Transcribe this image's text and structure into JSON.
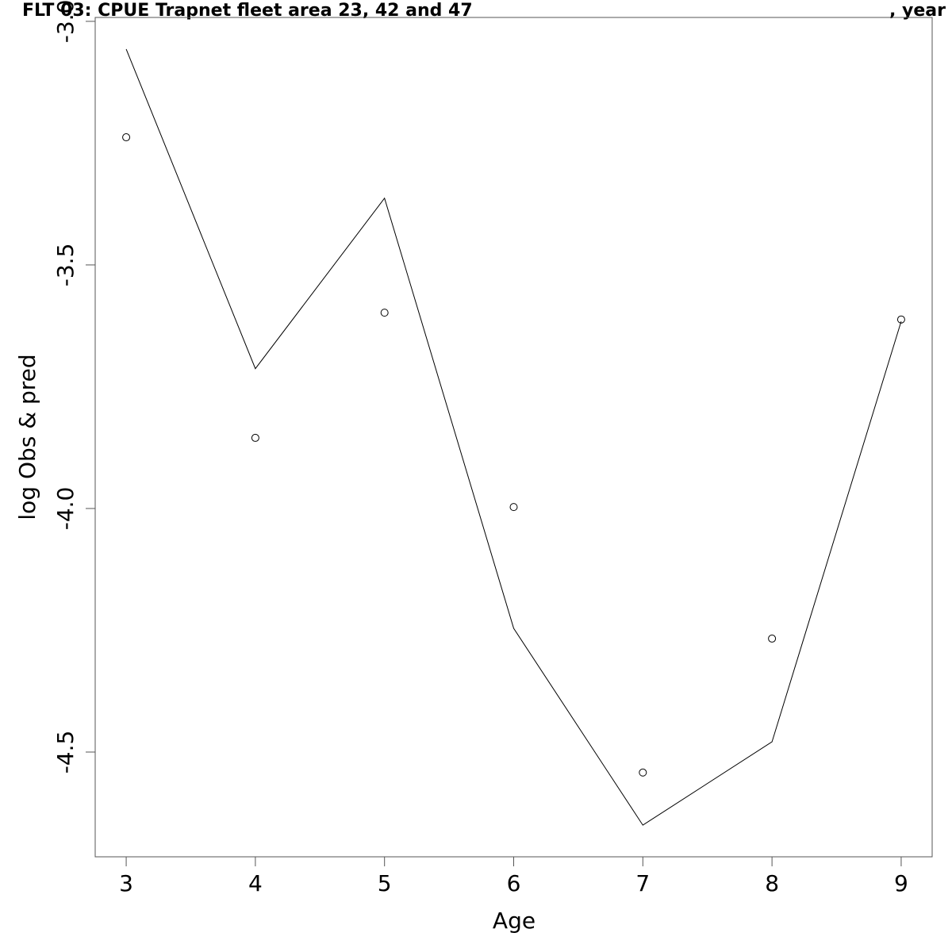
{
  "chart_data": {
    "type": "line",
    "title": "FLT 03: CPUE Trapnet fleet area 23, 42 and 47",
    "title_suffix": ", year",
    "x_label": "Age",
    "y_label": "log Obs & pred",
    "x": [
      3,
      4,
      5,
      6,
      7,
      8,
      9
    ],
    "series": [
      {
        "name": "obs",
        "kind": "points",
        "color": "#000000",
        "values": [
          -3.238,
          -3.855,
          -3.598,
          -3.997,
          -4.542,
          -4.267,
          -3.612
        ]
      },
      {
        "name": "pred",
        "kind": "line",
        "color": "#000000",
        "values": [
          -3.057,
          -3.713,
          -3.363,
          -4.246,
          -4.65,
          -4.479,
          -3.616
        ]
      }
    ],
    "xlim": [
      2.76,
      9.24
    ],
    "xticks": [
      3,
      4,
      5,
      6,
      7,
      8,
      9
    ],
    "ylim": [
      -4.715,
      -2.992
    ],
    "yticks": [
      {
        "value": -3,
        "label": "-3.0"
      },
      -3.5,
      {
        "value": -4,
        "label": "-4.0"
      },
      -4.5
    ],
    "grid": false
  }
}
